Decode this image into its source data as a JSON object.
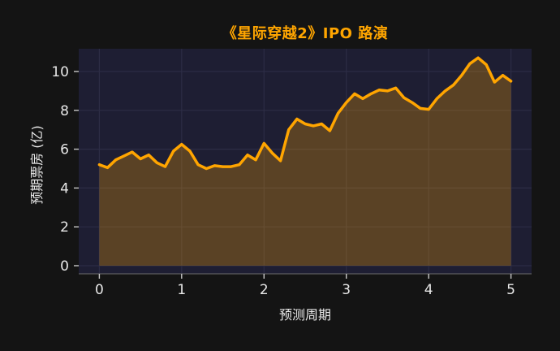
{
  "figure": {
    "background": "#141414"
  },
  "chart_data": {
    "type": "area",
    "title": "《星际穿越2》IPO 路演",
    "xlabel": "预测周期",
    "ylabel": "预期票房 (亿)",
    "x": [
      0.0,
      0.1,
      0.2,
      0.3,
      0.4,
      0.5,
      0.6,
      0.7,
      0.8,
      0.9,
      1.0,
      1.1,
      1.2,
      1.3,
      1.4,
      1.5,
      1.6,
      1.7,
      1.8,
      1.9,
      2.0,
      2.1,
      2.2,
      2.3,
      2.4,
      2.5,
      2.6,
      2.7,
      2.8,
      2.9,
      3.0,
      3.1,
      3.2,
      3.3,
      3.4,
      3.5,
      3.6,
      3.7,
      3.8,
      3.9,
      4.0,
      4.1,
      4.2,
      4.3,
      4.4,
      4.5,
      4.6,
      4.7,
      4.8,
      4.9,
      5.0
    ],
    "y": [
      5.2,
      5.05,
      5.45,
      5.65,
      5.85,
      5.5,
      5.7,
      5.3,
      5.1,
      5.9,
      6.25,
      5.9,
      5.2,
      5.0,
      5.15,
      5.1,
      5.1,
      5.2,
      5.7,
      5.45,
      6.3,
      5.8,
      5.4,
      7.0,
      7.55,
      7.3,
      7.2,
      7.3,
      6.95,
      7.85,
      8.4,
      8.85,
      8.6,
      8.85,
      9.05,
      9.0,
      9.15,
      8.65,
      8.4,
      8.1,
      8.05,
      8.6,
      9.0,
      9.3,
      9.8,
      10.4,
      10.7,
      10.35,
      9.45,
      9.8,
      9.5
    ],
    "xticks": [
      0,
      1,
      2,
      3,
      4,
      5
    ],
    "yticks": [
      0,
      2,
      4,
      6,
      8,
      10
    ],
    "xlim": [
      -0.25,
      5.25
    ],
    "ylim": [
      -0.42,
      11.17
    ],
    "fill_baseline": 0,
    "grid": true,
    "legend": "none",
    "colors": {
      "line": "#FFA500",
      "fill": "#FFA500",
      "fill_opacity": 0.27,
      "title": "#FFA500",
      "plot_background": "#1E1E33",
      "grid": "#2C2C45",
      "spine": "#6E6E6E",
      "tick": "#C8C8C8",
      "tick_label": "#E8E8E8",
      "axis_label": "#E8E8E8"
    }
  }
}
